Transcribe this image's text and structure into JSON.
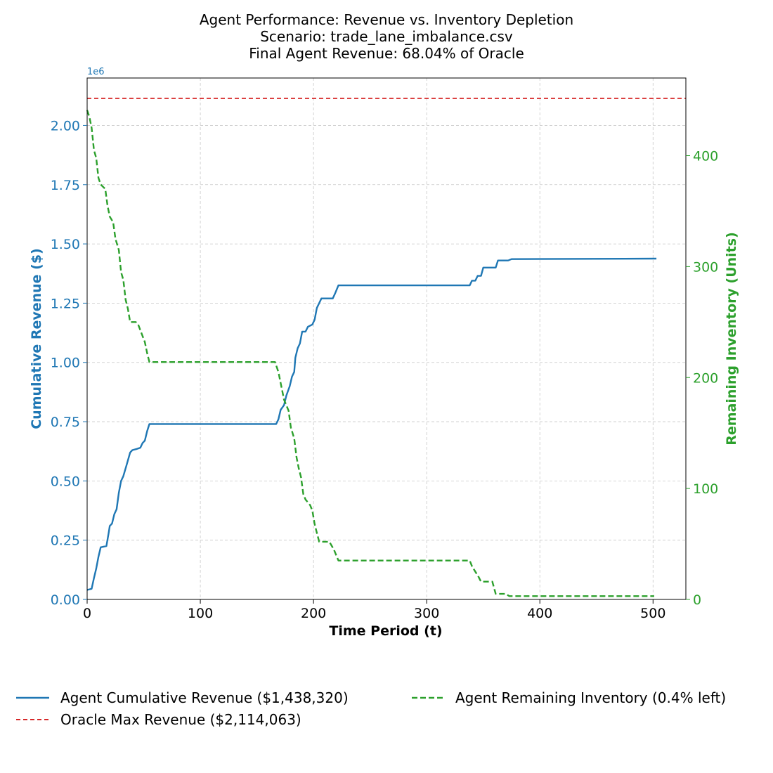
{
  "chart_data": {
    "type": "line",
    "title": [
      "Agent Performance: Revenue vs. Inventory Depletion",
      "Scenario: trade_lane_imbalance.csv",
      "Final Agent Revenue: 68.04% of Oracle"
    ],
    "xlabel": "Time Period (t)",
    "ylabel_left": "Cumulative Revenue ($)",
    "ylabel_right": "Remaining Inventory (Units)",
    "left_axis_offset": "1e6",
    "xlim": [
      0,
      529
    ],
    "ylim_left": [
      0,
      2.2
    ],
    "ylim_right": [
      0,
      470
    ],
    "x_ticks": [
      "0",
      "100",
      "200",
      "300",
      "400",
      "500"
    ],
    "y_left_ticks": [
      "0.00",
      "0.25",
      "0.50",
      "0.75",
      "1.00",
      "1.25",
      "1.50",
      "1.75",
      "2.00"
    ],
    "y_right_ticks": [
      "0",
      "100",
      "200",
      "300",
      "400"
    ],
    "grid": true,
    "colors": {
      "revenue": "#1f77b4",
      "inventory": "#2ca02c",
      "oracle": "#d62728"
    },
    "legend": {
      "revenue": "Agent Cumulative Revenue ($1,438,320)",
      "oracle": "Oracle Max Revenue ($2,114,063)",
      "inventory": "Agent Remaining Inventory (0.4% left)"
    },
    "oracle_value": 2.114063,
    "series": [
      {
        "name": "Agent Cumulative Revenue ($1,438,320)",
        "axis": "left",
        "style": "solid",
        "points": [
          [
            0,
            0.04
          ],
          [
            4,
            0.045
          ],
          [
            6,
            0.09
          ],
          [
            8,
            0.13
          ],
          [
            10,
            0.18
          ],
          [
            12,
            0.22
          ],
          [
            17,
            0.225
          ],
          [
            19,
            0.28
          ],
          [
            20,
            0.31
          ],
          [
            22,
            0.32
          ],
          [
            24,
            0.36
          ],
          [
            26,
            0.38
          ],
          [
            28,
            0.45
          ],
          [
            30,
            0.5
          ],
          [
            32,
            0.52
          ],
          [
            35,
            0.57
          ],
          [
            38,
            0.62
          ],
          [
            40,
            0.63
          ],
          [
            44,
            0.635
          ],
          [
            47,
            0.64
          ],
          [
            49,
            0.66
          ],
          [
            51,
            0.67
          ],
          [
            53,
            0.71
          ],
          [
            55,
            0.74
          ],
          [
            100,
            0.74
          ],
          [
            167,
            0.74
          ],
          [
            169,
            0.76
          ],
          [
            171,
            0.8
          ],
          [
            174,
            0.82
          ],
          [
            176,
            0.86
          ],
          [
            179,
            0.9
          ],
          [
            181,
            0.94
          ],
          [
            183,
            0.96
          ],
          [
            184,
            1.02
          ],
          [
            186,
            1.06
          ],
          [
            188,
            1.08
          ],
          [
            190,
            1.13
          ],
          [
            193,
            1.13
          ],
          [
            195,
            1.15
          ],
          [
            199,
            1.16
          ],
          [
            201,
            1.18
          ],
          [
            203,
            1.23
          ],
          [
            205,
            1.25
          ],
          [
            207,
            1.27
          ],
          [
            217,
            1.27
          ],
          [
            219,
            1.29
          ],
          [
            222,
            1.325
          ],
          [
            300,
            1.325
          ],
          [
            338,
            1.325
          ],
          [
            340,
            1.345
          ],
          [
            343,
            1.345
          ],
          [
            345,
            1.365
          ],
          [
            348,
            1.365
          ],
          [
            350,
            1.4
          ],
          [
            357,
            1.4
          ],
          [
            361,
            1.4
          ],
          [
            363,
            1.43
          ],
          [
            372,
            1.43
          ],
          [
            375,
            1.436
          ],
          [
            503,
            1.438
          ]
        ]
      },
      {
        "name": "Agent Remaining Inventory (0.4% left)",
        "axis": "right",
        "style": "dashed",
        "points": [
          [
            0,
            441
          ],
          [
            2,
            435
          ],
          [
            4,
            425
          ],
          [
            6,
            405
          ],
          [
            8,
            398
          ],
          [
            10,
            380
          ],
          [
            12,
            374
          ],
          [
            16,
            370
          ],
          [
            18,
            355
          ],
          [
            20,
            345
          ],
          [
            23,
            340
          ],
          [
            25,
            325
          ],
          [
            28,
            315
          ],
          [
            30,
            295
          ],
          [
            32,
            288
          ],
          [
            34,
            270
          ],
          [
            36,
            262
          ],
          [
            38,
            250
          ],
          [
            43,
            250
          ],
          [
            45,
            248
          ],
          [
            48,
            240
          ],
          [
            51,
            232
          ],
          [
            53,
            222
          ],
          [
            55,
            214
          ],
          [
            100,
            214
          ],
          [
            166,
            214
          ],
          [
            169,
            205
          ],
          [
            171,
            195
          ],
          [
            174,
            180
          ],
          [
            178,
            170
          ],
          [
            180,
            155
          ],
          [
            183,
            145
          ],
          [
            185,
            128
          ],
          [
            187,
            118
          ],
          [
            189,
            110
          ],
          [
            191,
            95
          ],
          [
            193,
            90
          ],
          [
            197,
            85
          ],
          [
            199,
            80
          ],
          [
            201,
            68
          ],
          [
            203,
            60
          ],
          [
            205,
            52
          ],
          [
            214,
            52
          ],
          [
            218,
            45
          ],
          [
            222,
            35
          ],
          [
            300,
            35
          ],
          [
            338,
            35
          ],
          [
            340,
            30
          ],
          [
            343,
            25
          ],
          [
            346,
            20
          ],
          [
            348,
            16
          ],
          [
            358,
            16
          ],
          [
            361,
            5
          ],
          [
            370,
            5
          ],
          [
            373,
            3
          ],
          [
            400,
            3
          ],
          [
            501,
            3
          ]
        ]
      }
    ]
  }
}
